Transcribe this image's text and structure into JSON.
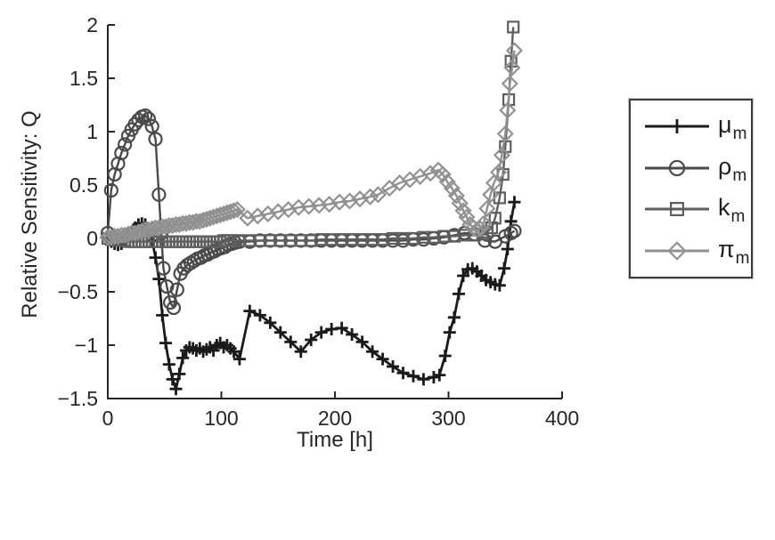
{
  "figure": {
    "background": "#ffffff"
  },
  "axes": {
    "xlabel": "Time [h]",
    "ylabel": "Relative Sensitivity: Q",
    "axis_color": "#262626",
    "tick_font_px": 23
  },
  "legend": {
    "position": "outside-right",
    "entries": [
      {
        "symbol": "μ",
        "subscript": "m",
        "marker": "plus",
        "color": "#1a1a1a"
      },
      {
        "symbol": "ρ",
        "subscript": "m",
        "marker": "circle",
        "color": "#4a4a4a"
      },
      {
        "symbol": "k",
        "subscript": "m",
        "marker": "square",
        "color": "#5e5e5e"
      },
      {
        "symbol": "π",
        "subscript": "m",
        "marker": "diamond",
        "color": "#919191"
      }
    ]
  },
  "chart_data": {
    "type": "line",
    "title": "",
    "xlabel": "Time [h]",
    "ylabel": "Relative Sensitivity: Q",
    "xlim": [
      0,
      400
    ],
    "ylim": [
      -1.5,
      2
    ],
    "x_ticks": [
      0,
      100,
      200,
      300,
      400
    ],
    "y_ticks": [
      2,
      1.5,
      1,
      0.5,
      0,
      -0.5,
      -1,
      -1.5
    ],
    "grid": false,
    "legend_position": "outside-right",
    "series": [
      {
        "name": "mu_m",
        "label": "μ_m",
        "marker": "plus",
        "color": "#1a1a1a",
        "line_width": 2.8,
        "points": [
          [
            0,
            0
          ],
          [
            3,
            -0.03
          ],
          [
            6,
            -0.05
          ],
          [
            9,
            -0.06
          ],
          [
            12,
            -0.05
          ],
          [
            15,
            -0.02
          ],
          [
            18,
            0.02
          ],
          [
            21,
            0.06
          ],
          [
            24,
            0.1
          ],
          [
            27,
            0.13
          ],
          [
            30,
            0.14
          ],
          [
            33,
            0.13
          ],
          [
            36,
            0.08
          ],
          [
            39,
            -0.02
          ],
          [
            42,
            -0.18
          ],
          [
            45,
            -0.38
          ],
          [
            48,
            -0.72
          ],
          [
            51,
            -0.98
          ],
          [
            54,
            -1.18
          ],
          [
            57,
            -1.32
          ],
          [
            60,
            -1.41
          ],
          [
            63,
            -1.27
          ],
          [
            66,
            -1.12
          ],
          [
            69,
            -1.05
          ],
          [
            72,
            -1.02
          ],
          [
            75,
            -1.03
          ],
          [
            78,
            -1.05
          ],
          [
            81,
            -1.03
          ],
          [
            84,
            -1.06
          ],
          [
            87,
            -1.04
          ],
          [
            90,
            -1.02
          ],
          [
            93,
            -1.05
          ],
          [
            96,
            -1.0
          ],
          [
            99,
            -0.98
          ],
          [
            102,
            -1.02
          ],
          [
            105,
            -1.0
          ],
          [
            108,
            -1.03
          ],
          [
            111,
            -1.06
          ],
          [
            116,
            -1.13
          ],
          [
            125,
            -0.68
          ],
          [
            134,
            -0.72
          ],
          [
            143,
            -0.79
          ],
          [
            152,
            -0.88
          ],
          [
            161,
            -0.97
          ],
          [
            170,
            -1.06
          ],
          [
            179,
            -0.95
          ],
          [
            188,
            -0.88
          ],
          [
            197,
            -0.85
          ],
          [
            206,
            -0.84
          ],
          [
            215,
            -0.9
          ],
          [
            224,
            -0.97
          ],
          [
            233,
            -1.06
          ],
          [
            242,
            -1.13
          ],
          [
            251,
            -1.2
          ],
          [
            260,
            -1.26
          ],
          [
            269,
            -1.29
          ],
          [
            278,
            -1.32
          ],
          [
            287,
            -1.3
          ],
          [
            292,
            -1.28
          ],
          [
            297,
            -1.1
          ],
          [
            301,
            -0.88
          ],
          [
            305,
            -0.74
          ],
          [
            309,
            -0.52
          ],
          [
            313,
            -0.35
          ],
          [
            317,
            -0.29
          ],
          [
            321,
            -0.28
          ],
          [
            325,
            -0.31
          ],
          [
            329,
            -0.35
          ],
          [
            333,
            -0.39
          ],
          [
            337,
            -0.41
          ],
          [
            341,
            -0.43
          ],
          [
            345,
            -0.44
          ],
          [
            349,
            -0.28
          ],
          [
            352,
            -0.1
          ],
          [
            355,
            0.16
          ],
          [
            358,
            0.34
          ]
        ]
      },
      {
        "name": "rho_m",
        "label": "ρ_m",
        "marker": "circle",
        "color": "#4a4a4a",
        "line_width": 2.4,
        "points": [
          [
            0,
            0.05
          ],
          [
            3,
            0.45
          ],
          [
            6,
            0.6
          ],
          [
            9,
            0.7
          ],
          [
            12,
            0.8
          ],
          [
            15,
            0.88
          ],
          [
            18,
            0.96
          ],
          [
            21,
            1.02
          ],
          [
            24,
            1.07
          ],
          [
            27,
            1.11
          ],
          [
            30,
            1.14
          ],
          [
            33,
            1.15
          ],
          [
            36,
            1.12
          ],
          [
            39,
            1.05
          ],
          [
            42,
            0.93
          ],
          [
            45,
            0.41
          ],
          [
            47,
            0.05
          ],
          [
            49,
            -0.28
          ],
          [
            52,
            -0.45
          ],
          [
            55,
            -0.6
          ],
          [
            58,
            -0.65
          ],
          [
            61,
            -0.48
          ],
          [
            64,
            -0.33
          ],
          [
            67,
            -0.28
          ],
          [
            70,
            -0.25
          ],
          [
            73,
            -0.23
          ],
          [
            76,
            -0.21
          ],
          [
            79,
            -0.19
          ],
          [
            82,
            -0.18
          ],
          [
            85,
            -0.16
          ],
          [
            88,
            -0.15
          ],
          [
            91,
            -0.13
          ],
          [
            94,
            -0.12
          ],
          [
            97,
            -0.1
          ],
          [
            100,
            -0.09
          ],
          [
            103,
            -0.08
          ],
          [
            106,
            -0.06
          ],
          [
            109,
            -0.05
          ],
          [
            112,
            -0.04
          ],
          [
            116,
            -0.03
          ],
          [
            125,
            -0.03
          ],
          [
            134,
            -0.02
          ],
          [
            143,
            -0.02
          ],
          [
            152,
            -0.02
          ],
          [
            161,
            -0.02
          ],
          [
            170,
            -0.02
          ],
          [
            179,
            -0.02
          ],
          [
            188,
            -0.02
          ],
          [
            197,
            -0.02
          ],
          [
            206,
            -0.02
          ],
          [
            215,
            -0.02
          ],
          [
            224,
            -0.02
          ],
          [
            233,
            -0.02
          ],
          [
            242,
            -0.02
          ],
          [
            251,
            -0.02
          ],
          [
            260,
            -0.02
          ],
          [
            269,
            -0.01
          ],
          [
            278,
            -0.01
          ],
          [
            287,
            0
          ],
          [
            296,
            0.01
          ],
          [
            305,
            0.03
          ],
          [
            314,
            0.05
          ],
          [
            323,
            0.04
          ],
          [
            332,
            -0.02
          ],
          [
            341,
            -0.03
          ],
          [
            350,
            0.02
          ],
          [
            355,
            0.05
          ],
          [
            358,
            0.07
          ]
        ]
      },
      {
        "name": "k_m",
        "label": "k_m",
        "marker": "square",
        "color": "#5e5e5e",
        "line_width": 2.4,
        "points": [
          [
            0,
            0
          ],
          [
            3,
            -0.01
          ],
          [
            6,
            -0.01
          ],
          [
            9,
            -0.02
          ],
          [
            12,
            -0.02
          ],
          [
            15,
            -0.02
          ],
          [
            18,
            -0.03
          ],
          [
            21,
            -0.03
          ],
          [
            24,
            -0.03
          ],
          [
            27,
            -0.03
          ],
          [
            30,
            -0.03
          ],
          [
            33,
            -0.03
          ],
          [
            36,
            -0.03
          ],
          [
            39,
            -0.03
          ],
          [
            42,
            -0.03
          ],
          [
            45,
            -0.03
          ],
          [
            48,
            -0.03
          ],
          [
            51,
            -0.03
          ],
          [
            54,
            -0.03
          ],
          [
            57,
            -0.03
          ],
          [
            60,
            -0.03
          ],
          [
            63,
            -0.03
          ],
          [
            66,
            -0.03
          ],
          [
            69,
            -0.03
          ],
          [
            72,
            -0.03
          ],
          [
            75,
            -0.03
          ],
          [
            78,
            -0.03
          ],
          [
            81,
            -0.03
          ],
          [
            84,
            -0.03
          ],
          [
            87,
            -0.03
          ],
          [
            90,
            -0.03
          ],
          [
            93,
            -0.03
          ],
          [
            96,
            -0.03
          ],
          [
            99,
            -0.03
          ],
          [
            102,
            -0.02
          ],
          [
            105,
            -0.02
          ],
          [
            108,
            -0.02
          ],
          [
            111,
            -0.02
          ],
          [
            116,
            -0.02
          ],
          [
            125,
            -0.02
          ],
          [
            134,
            -0.02
          ],
          [
            143,
            -0.02
          ],
          [
            152,
            -0.02
          ],
          [
            161,
            -0.02
          ],
          [
            170,
            -0.02
          ],
          [
            179,
            -0.02
          ],
          [
            188,
            -0.01
          ],
          [
            197,
            -0.01
          ],
          [
            206,
            -0.01
          ],
          [
            215,
            -0.01
          ],
          [
            224,
            -0.01
          ],
          [
            233,
            -0.01
          ],
          [
            242,
            -0.01
          ],
          [
            251,
            0
          ],
          [
            260,
            0
          ],
          [
            269,
            0
          ],
          [
            278,
            0.01
          ],
          [
            287,
            0.01
          ],
          [
            296,
            0.02
          ],
          [
            305,
            0.02
          ],
          [
            314,
            0.03
          ],
          [
            323,
            0.03
          ],
          [
            330,
            0.04
          ],
          [
            334,
            0.06
          ],
          [
            338,
            0.1
          ],
          [
            341,
            0.19
          ],
          [
            345,
            0.38
          ],
          [
            348,
            0.6
          ],
          [
            350,
            0.86
          ],
          [
            353,
            1.3
          ],
          [
            355,
            1.66
          ],
          [
            357,
            1.98
          ]
        ]
      },
      {
        "name": "pi_m",
        "label": "π_m",
        "marker": "diamond",
        "color": "#919191",
        "line_width": 2.4,
        "points": [
          [
            0,
            0.01
          ],
          [
            3,
            0.01
          ],
          [
            6,
            0.02
          ],
          [
            9,
            0.02
          ],
          [
            12,
            0.03
          ],
          [
            15,
            0.03
          ],
          [
            18,
            0.04
          ],
          [
            21,
            0.05
          ],
          [
            24,
            0.05
          ],
          [
            27,
            0.06
          ],
          [
            30,
            0.07
          ],
          [
            33,
            0.08
          ],
          [
            36,
            0.08
          ],
          [
            39,
            0.09
          ],
          [
            42,
            0.1
          ],
          [
            45,
            0.1
          ],
          [
            48,
            0.11
          ],
          [
            51,
            0.11
          ],
          [
            54,
            0.12
          ],
          [
            57,
            0.12
          ],
          [
            60,
            0.13
          ],
          [
            63,
            0.13
          ],
          [
            66,
            0.14
          ],
          [
            69,
            0.14
          ],
          [
            72,
            0.15
          ],
          [
            75,
            0.15
          ],
          [
            78,
            0.16
          ],
          [
            81,
            0.16
          ],
          [
            84,
            0.17
          ],
          [
            87,
            0.18
          ],
          [
            90,
            0.19
          ],
          [
            93,
            0.2
          ],
          [
            96,
            0.21
          ],
          [
            99,
            0.22
          ],
          [
            102,
            0.23
          ],
          [
            105,
            0.24
          ],
          [
            108,
            0.25
          ],
          [
            111,
            0.26
          ],
          [
            114,
            0.27
          ],
          [
            123,
            0.19
          ],
          [
            132,
            0.21
          ],
          [
            141,
            0.23
          ],
          [
            150,
            0.25
          ],
          [
            159,
            0.27
          ],
          [
            168,
            0.29
          ],
          [
            177,
            0.3
          ],
          [
            186,
            0.31
          ],
          [
            195,
            0.32
          ],
          [
            204,
            0.34
          ],
          [
            213,
            0.35
          ],
          [
            222,
            0.37
          ],
          [
            231,
            0.39
          ],
          [
            238,
            0.41
          ],
          [
            248,
            0.47
          ],
          [
            257,
            0.52
          ],
          [
            266,
            0.55
          ],
          [
            275,
            0.58
          ],
          [
            284,
            0.61
          ],
          [
            291,
            0.64
          ],
          [
            295,
            0.6
          ],
          [
            299,
            0.53
          ],
          [
            303,
            0.47
          ],
          [
            307,
            0.4
          ],
          [
            310,
            0.33
          ],
          [
            313,
            0.26
          ],
          [
            316,
            0.2
          ],
          [
            319,
            0.13
          ],
          [
            322,
            0.1
          ],
          [
            325,
            0.08
          ],
          [
            328,
            0.09
          ],
          [
            331,
            0.14
          ],
          [
            334,
            0.28
          ],
          [
            337,
            0.41
          ],
          [
            340,
            0.52
          ],
          [
            344,
            0.62
          ],
          [
            347,
            0.78
          ],
          [
            350,
            0.98
          ],
          [
            352,
            1.2
          ],
          [
            354,
            1.45
          ],
          [
            356,
            1.6
          ],
          [
            358,
            1.76
          ]
        ]
      }
    ]
  }
}
